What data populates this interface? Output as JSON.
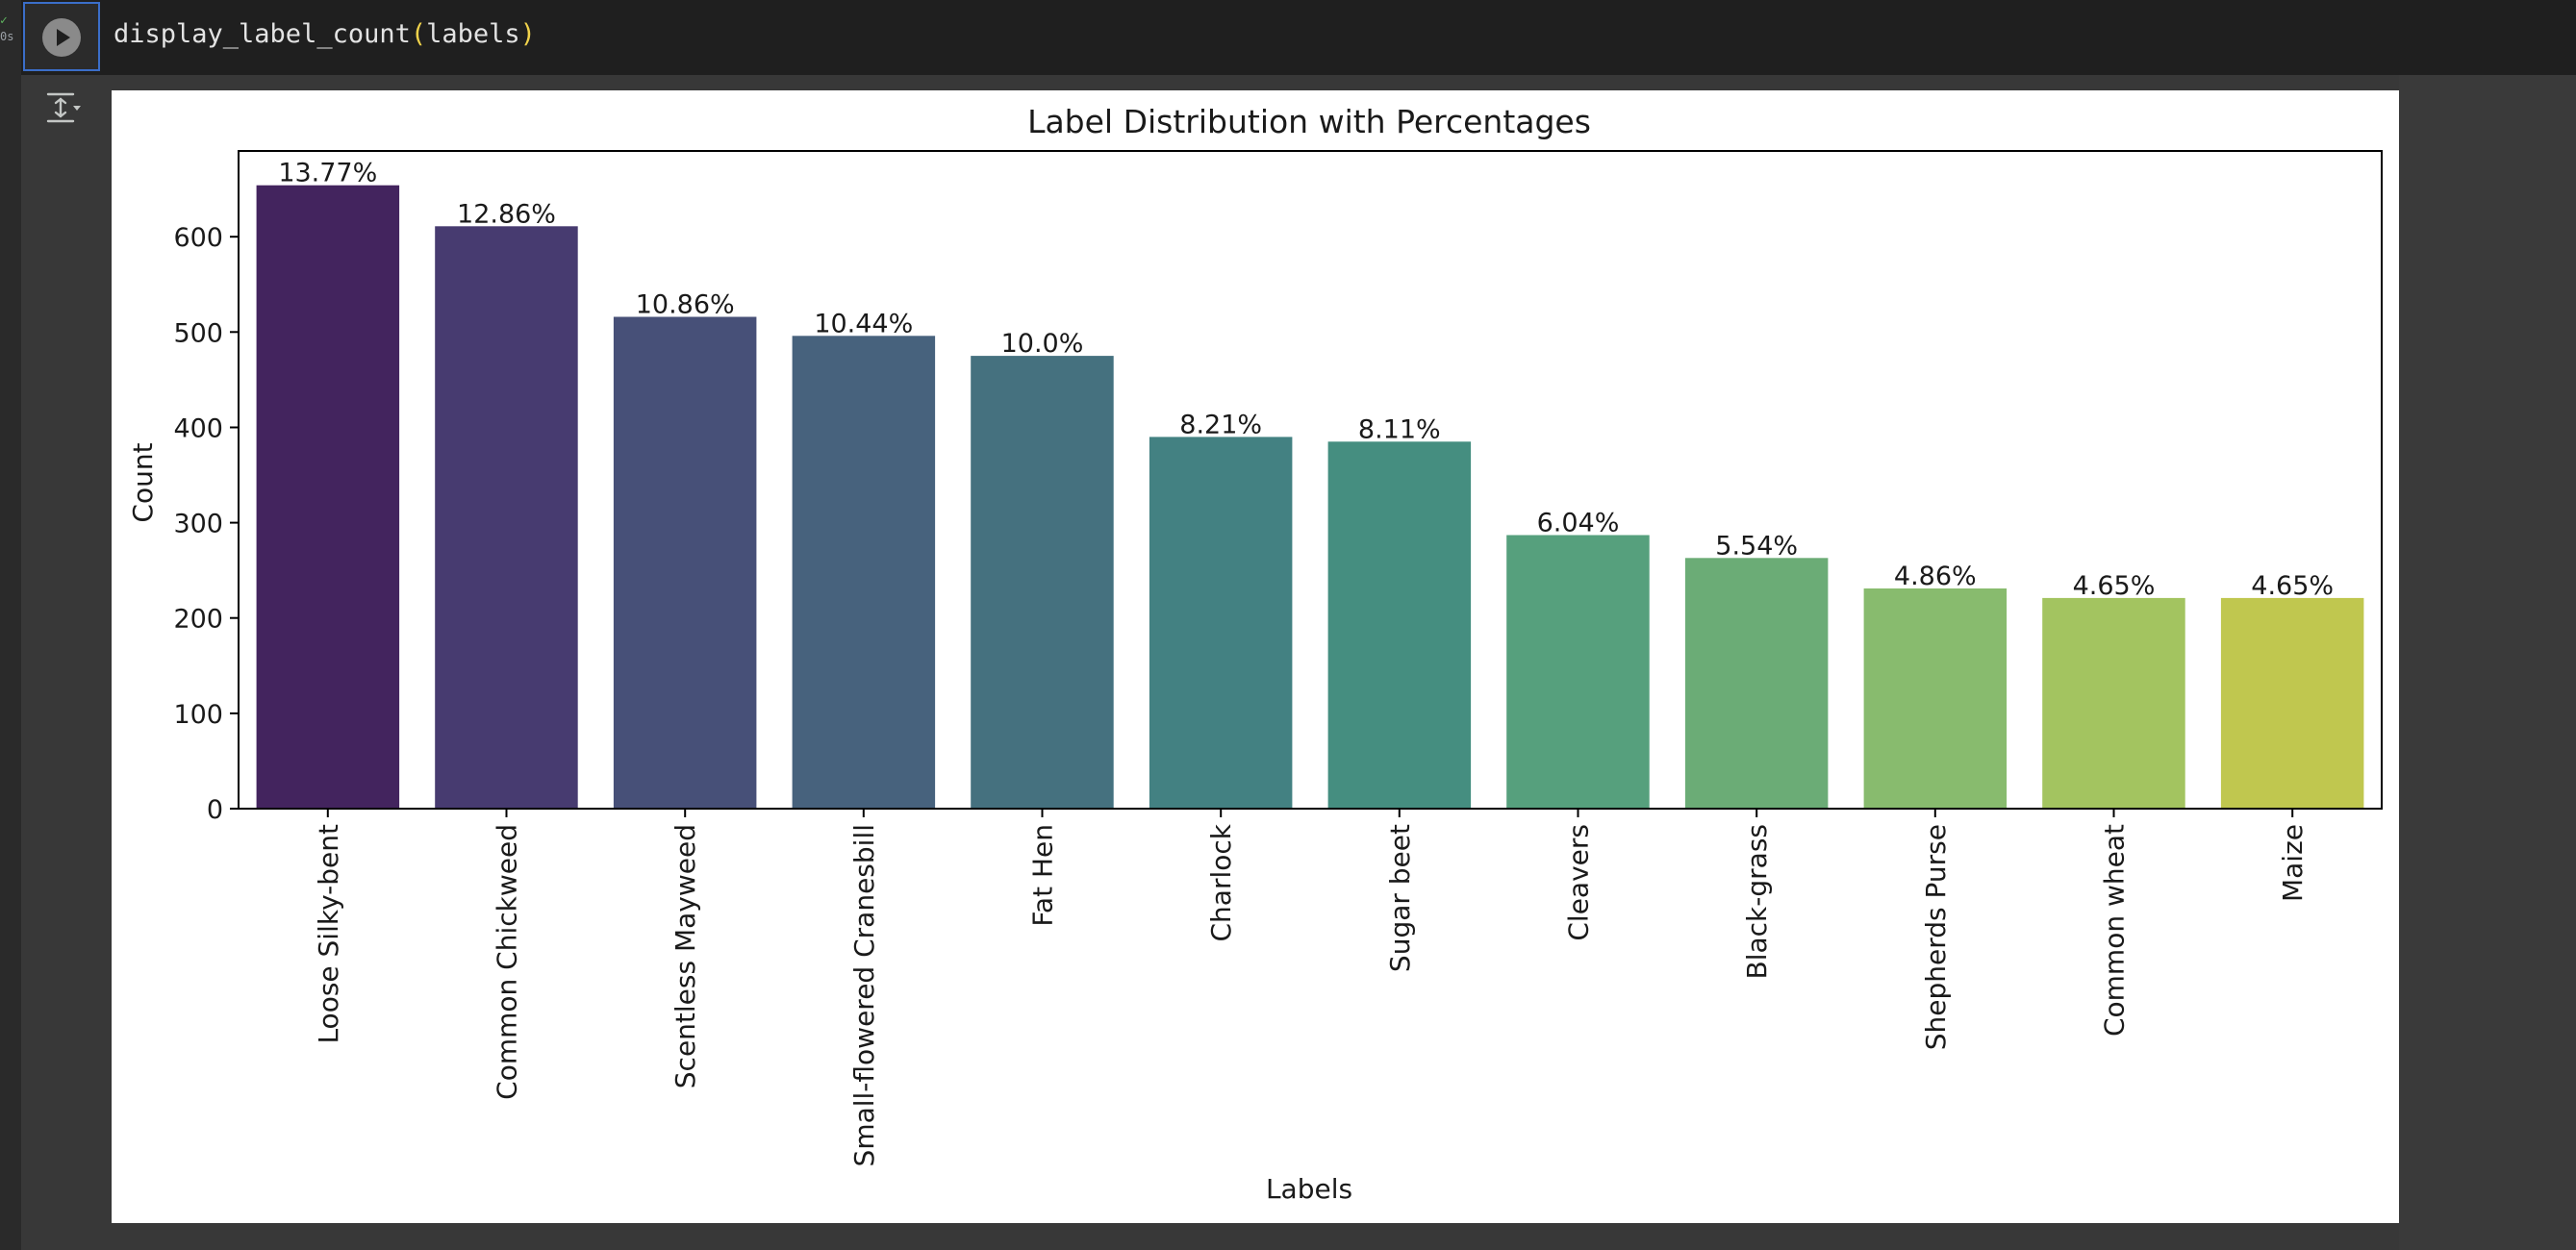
{
  "cell": {
    "status_check": "✓",
    "status_time": "0s",
    "code_fn": "display_label_count",
    "code_open": "(",
    "code_arg": "labels",
    "code_close": ")"
  },
  "icons": {
    "run": "play-circle-icon",
    "output": "output-toggle-icon"
  },
  "chart_data": {
    "type": "bar",
    "title": "Label Distribution with Percentages",
    "xlabel": "Labels",
    "ylabel": "Count",
    "ylim": [
      0,
      690
    ],
    "yticks": [
      0,
      100,
      200,
      300,
      400,
      500,
      600
    ],
    "categories": [
      "Loose Silky-bent",
      "Common Chickweed",
      "Scentless Mayweed",
      "Small-flowered Cranesbill",
      "Fat Hen",
      "Charlock",
      "Sugar beet",
      "Cleavers",
      "Black-grass",
      "Shepherds Purse",
      "Common wheat",
      "Maize"
    ],
    "values": [
      654,
      611,
      516,
      496,
      475,
      390,
      385,
      287,
      263,
      231,
      221,
      221
    ],
    "percent_labels": [
      "13.77%",
      "12.86%",
      "10.86%",
      "10.44%",
      "10.0%",
      "8.21%",
      "8.11%",
      "6.04%",
      "5.54%",
      "4.86%",
      "4.65%",
      "4.65%"
    ],
    "colors": [
      "#43245e",
      "#473b70",
      "#475078",
      "#47627d",
      "#45717f",
      "#438182",
      "#458e80",
      "#56a07d",
      "#6bac76",
      "#88bb6e",
      "#a3c460",
      "#c0c74f"
    ],
    "grid": false,
    "legend": "none"
  }
}
